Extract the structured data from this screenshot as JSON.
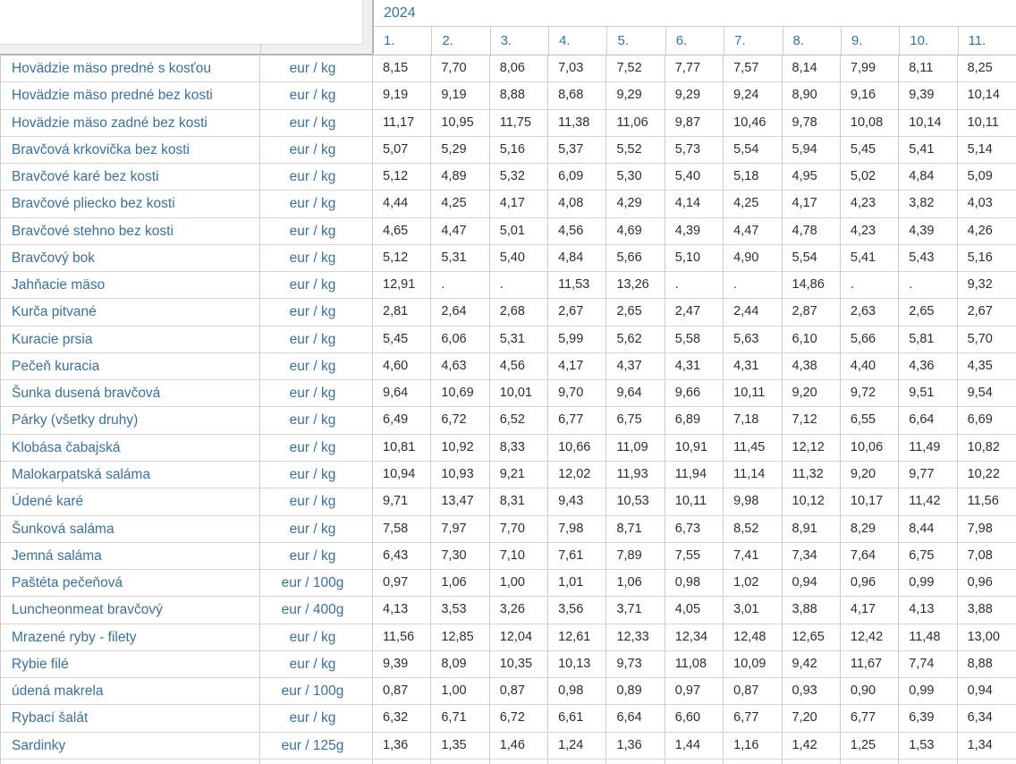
{
  "header": {
    "year": "2024",
    "months": [
      "1.",
      "2.",
      "3.",
      "4.",
      "5.",
      "6.",
      "7.",
      "8.",
      "9.",
      "10.",
      "11."
    ]
  },
  "table": {
    "rows": [
      {
        "name": "Hovädzie mäso predné s kosťou",
        "unit": "eur / kg",
        "values": [
          "8,15",
          "7,70",
          "8,06",
          "7,03",
          "7,52",
          "7,77",
          "7,57",
          "8,14",
          "7,99",
          "8,11",
          "8,25"
        ]
      },
      {
        "name": "Hovädzie mäso predné bez kosti",
        "unit": "eur / kg",
        "values": [
          "9,19",
          "9,19",
          "8,88",
          "8,68",
          "9,29",
          "9,29",
          "9,24",
          "8,90",
          "9,16",
          "9,39",
          "10,14"
        ]
      },
      {
        "name": "Hovädzie mäso zadné bez kosti",
        "unit": "eur / kg",
        "values": [
          "11,17",
          "10,95",
          "11,75",
          "11,38",
          "11,06",
          "9,87",
          "10,46",
          "9,78",
          "10,08",
          "10,14",
          "10,11"
        ]
      },
      {
        "name": "Bravčová krkovička bez kosti",
        "unit": "eur / kg",
        "values": [
          "5,07",
          "5,29",
          "5,16",
          "5,37",
          "5,52",
          "5,73",
          "5,54",
          "5,94",
          "5,45",
          "5,41",
          "5,14"
        ]
      },
      {
        "name": "Bravčové karé bez kosti",
        "unit": "eur / kg",
        "values": [
          "5,12",
          "4,89",
          "5,32",
          "6,09",
          "5,30",
          "5,40",
          "5,18",
          "4,95",
          "5,02",
          "4,84",
          "5,09"
        ]
      },
      {
        "name": "Bravčové pliecko bez kosti",
        "unit": "eur / kg",
        "values": [
          "4,44",
          "4,25",
          "4,17",
          "4,08",
          "4,29",
          "4,14",
          "4,25",
          "4,17",
          "4,23",
          "3,82",
          "4,03"
        ]
      },
      {
        "name": "Bravčové stehno bez kosti",
        "unit": "eur / kg",
        "values": [
          "4,65",
          "4,47",
          "5,01",
          "4,56",
          "4,69",
          "4,39",
          "4,47",
          "4,78",
          "4,23",
          "4,39",
          "4,26"
        ]
      },
      {
        "name": "Bravčový bok",
        "unit": "eur / kg",
        "values": [
          "5,12",
          "5,31",
          "5,40",
          "4,84",
          "5,66",
          "5,10",
          "4,90",
          "5,54",
          "5,41",
          "5,43",
          "5,16"
        ]
      },
      {
        "name": "Jahňacie mäso",
        "unit": "eur / kg",
        "values": [
          "12,91",
          ".",
          ".",
          "11,53",
          "13,26",
          ".",
          ".",
          "14,86",
          ".",
          ".",
          "9,32"
        ]
      },
      {
        "name": "Kurča pitvané",
        "unit": "eur / kg",
        "values": [
          "2,81",
          "2,64",
          "2,68",
          "2,67",
          "2,65",
          "2,47",
          "2,44",
          "2,87",
          "2,63",
          "2,65",
          "2,67"
        ]
      },
      {
        "name": "Kuracie prsia",
        "unit": "eur / kg",
        "values": [
          "5,45",
          "6,06",
          "5,31",
          "5,99",
          "5,62",
          "5,58",
          "5,63",
          "6,10",
          "5,66",
          "5,81",
          "5,70"
        ]
      },
      {
        "name": "Pečeň kuracia",
        "unit": "eur / kg",
        "values": [
          "4,60",
          "4,63",
          "4,56",
          "4,17",
          "4,37",
          "4,31",
          "4,31",
          "4,38",
          "4,40",
          "4,36",
          "4,35"
        ]
      },
      {
        "name": "Šunka dusená bravčová",
        "unit": "eur / kg",
        "values": [
          "9,64",
          "10,69",
          "10,01",
          "9,70",
          "9,64",
          "9,66",
          "10,11",
          "9,20",
          "9,72",
          "9,51",
          "9,54"
        ]
      },
      {
        "name": "Párky (všetky druhy)",
        "unit": "eur / kg",
        "values": [
          "6,49",
          "6,72",
          "6,52",
          "6,77",
          "6,75",
          "6,89",
          "7,18",
          "7,12",
          "6,55",
          "6,64",
          "6,69"
        ]
      },
      {
        "name": "Klobása čabajská",
        "unit": "eur / kg",
        "values": [
          "10,81",
          "10,92",
          "8,33",
          "10,66",
          "11,09",
          "10,91",
          "11,45",
          "12,12",
          "10,06",
          "11,49",
          "10,82"
        ]
      },
      {
        "name": "Malokarpatská saláma",
        "unit": "eur / kg",
        "values": [
          "10,94",
          "10,93",
          "9,21",
          "12,02",
          "11,93",
          "11,94",
          "11,14",
          "11,32",
          "9,20",
          "9,77",
          "10,22"
        ]
      },
      {
        "name": "Údené karé",
        "unit": "eur / kg",
        "values": [
          "9,71",
          "13,47",
          "8,31",
          "9,43",
          "10,53",
          "10,11",
          "9,98",
          "10,12",
          "10,17",
          "11,42",
          "11,56"
        ]
      },
      {
        "name": "Šunková saláma",
        "unit": "eur / kg",
        "values": [
          "7,58",
          "7,97",
          "7,70",
          "7,98",
          "8,71",
          "6,73",
          "8,52",
          "8,91",
          "8,29",
          "8,44",
          "7,98"
        ]
      },
      {
        "name": "Jemná saláma",
        "unit": "eur / kg",
        "values": [
          "6,43",
          "7,30",
          "7,10",
          "7,61",
          "7,89",
          "7,55",
          "7,41",
          "7,34",
          "7,64",
          "6,75",
          "7,08"
        ]
      },
      {
        "name": "Paštéta pečeňová",
        "unit": "eur / 100g",
        "values": [
          "0,97",
          "1,06",
          "1,00",
          "1,01",
          "1,06",
          "0,98",
          "1,02",
          "0,94",
          "0,96",
          "0,99",
          "0,96"
        ]
      },
      {
        "name": "Luncheonmeat bravčový",
        "unit": "eur / 400g",
        "values": [
          "4,13",
          "3,53",
          "3,26",
          "3,56",
          "3,71",
          "4,05",
          "3,01",
          "3,88",
          "4,17",
          "4,13",
          "3,88"
        ]
      },
      {
        "name": "Mrazené ryby - filety",
        "unit": "eur / kg",
        "values": [
          "11,56",
          "12,85",
          "12,04",
          "12,61",
          "12,33",
          "12,34",
          "12,48",
          "12,65",
          "12,42",
          "11,48",
          "13,00"
        ]
      },
      {
        "name": "Rybie filé",
        "unit": "eur / kg",
        "values": [
          "9,39",
          "8,09",
          "10,35",
          "10,13",
          "9,73",
          "11,08",
          "10,09",
          "9,42",
          "11,67",
          "7,74",
          "8,88"
        ]
      },
      {
        "name": "údená makrela",
        "unit": "eur / 100g",
        "values": [
          "0,87",
          "1,00",
          "0,87",
          "0,98",
          "0,89",
          "0,97",
          "0,87",
          "0,93",
          "0,90",
          "0,99",
          "0,94"
        ]
      },
      {
        "name": "Rybací šalát",
        "unit": "eur / kg",
        "values": [
          "6,32",
          "6,71",
          "6,72",
          "6,61",
          "6,64",
          "6,60",
          "6,77",
          "7,20",
          "6,77",
          "6,39",
          "6,34"
        ]
      },
      {
        "name": "Sardinky",
        "unit": "eur / 125g",
        "values": [
          "1,36",
          "1,35",
          "1,46",
          "1,24",
          "1,36",
          "1,44",
          "1,16",
          "1,42",
          "1,25",
          "1,53",
          "1,34"
        ]
      }
    ]
  },
  "colors": {
    "label_blue": "#3c7199",
    "value_ink": "#2e2e2e",
    "grid_line": "#c7ced4",
    "splitter_fill": "#eff1f1"
  }
}
